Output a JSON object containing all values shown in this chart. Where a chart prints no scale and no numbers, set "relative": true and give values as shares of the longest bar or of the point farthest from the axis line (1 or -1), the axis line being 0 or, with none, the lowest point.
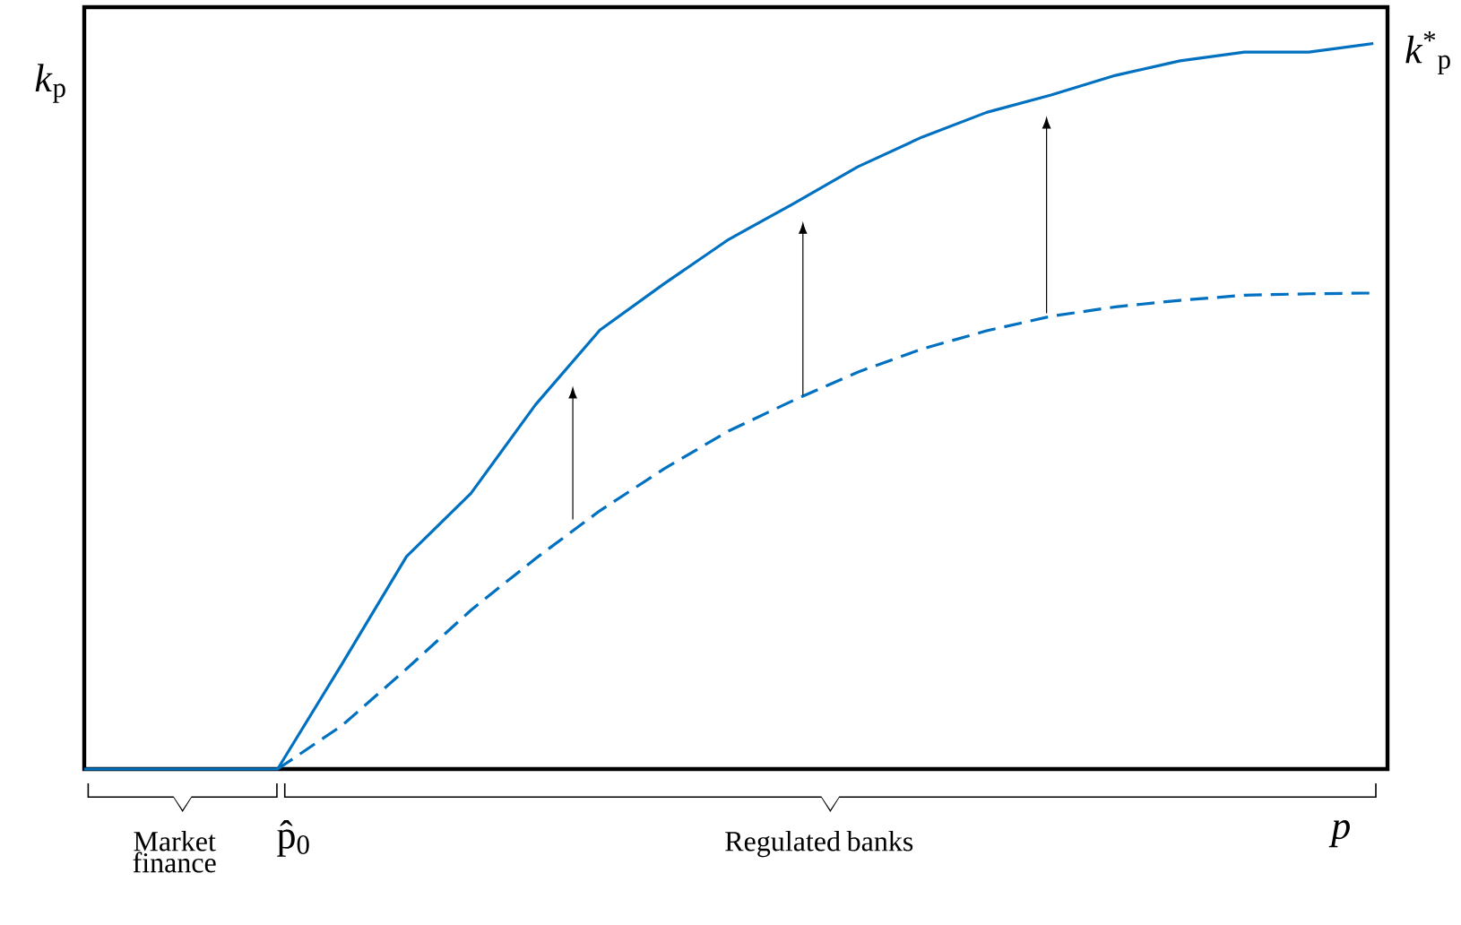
{
  "chart_data": {
    "type": "line",
    "relative": true,
    "ylabel": "*k*$_{p}$",
    "y2label": "*k*$^{*}$$_{p}$",
    "xlabel": "*p*",
    "categories": [
      null,
      null,
      null,
      null,
      null,
      null,
      null,
      null,
      null,
      null,
      null,
      null,
      null,
      null,
      null,
      null,
      null,
      null,
      null,
      null,
      null
    ],
    "series": [
      {
        "color": "#0070c0",
        "line_style": "solid",
        "values": [
          0,
          0,
          0,
          0,
          0.145,
          0.293,
          0.38,
          0.502,
          0.605,
          0.669,
          0.73,
          0.779,
          0.83,
          0.871,
          0.905,
          0.929,
          0.956,
          0.976,
          0.988,
          0.988,
          1.0
        ]
      },
      {
        "color": "#0070c0",
        "line_style": "dashed",
        "values": [
          null,
          null,
          null,
          0,
          0.06,
          0.138,
          0.219,
          0.29,
          0.356,
          0.414,
          0.466,
          0.508,
          0.547,
          0.579,
          0.604,
          0.624,
          0.637,
          0.646,
          0.653,
          0.655,
          0.656
        ]
      }
    ],
    "annotations": [
      "Market finance",
      "p̂$_{0}$",
      "Regulated banks"
    ]
  }
}
